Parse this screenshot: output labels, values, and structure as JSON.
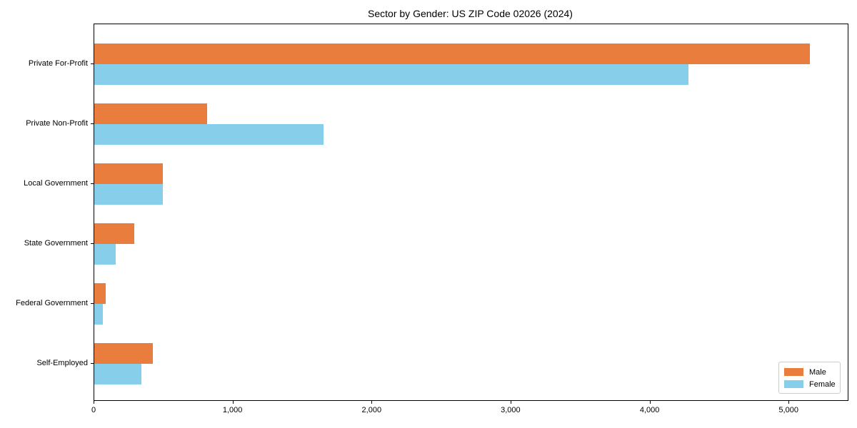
{
  "chart_data": {
    "type": "bar",
    "orientation": "horizontal",
    "title": "Sector by Gender: US ZIP Code 02026 (2024)",
    "categories": [
      "Private For-Profit",
      "Private Non-Profit",
      "Local Government",
      "State Government",
      "Federal Government",
      "Self-Employed"
    ],
    "series": [
      {
        "name": "Male",
        "color": "#e87d3e",
        "values": [
          5150,
          810,
          495,
          285,
          80,
          420
        ]
      },
      {
        "name": "Female",
        "color": "#87ceeb",
        "values": [
          4275,
          1650,
          495,
          155,
          60,
          340
        ]
      }
    ],
    "xlabel": "",
    "ylabel": "",
    "xlim": [
      0,
      5420
    ],
    "x_ticks": [
      {
        "value": 0,
        "label": "0"
      },
      {
        "value": 1000,
        "label": "1,000"
      },
      {
        "value": 2000,
        "label": "2,000"
      },
      {
        "value": 3000,
        "label": "3,000"
      },
      {
        "value": 4000,
        "label": "4,000"
      },
      {
        "value": 5000,
        "label": "5,000"
      }
    ],
    "grid": false,
    "legend": {
      "position": "lower right",
      "entries": [
        "Male",
        "Female"
      ]
    }
  }
}
